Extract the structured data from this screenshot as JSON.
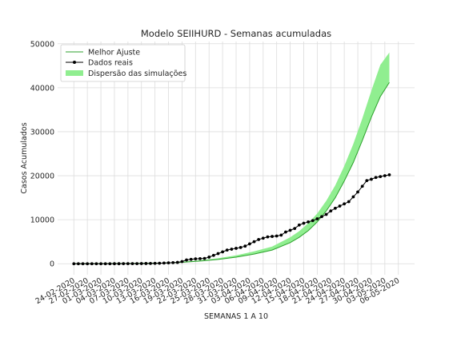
{
  "chart_data": {
    "type": "line",
    "title": "Modelo SEIIHURD - Semanas acumuladas",
    "xlabel": "SEMANAS 1 A 10",
    "ylabel": "Casos Acumulados",
    "ylim": [
      -2500,
      50500
    ],
    "yticks": [
      0,
      10000,
      20000,
      30000,
      40000,
      50000
    ],
    "grid": true,
    "legend_position": "top-left",
    "x_tick_labels": [
      "24-02-2020",
      "27-02-2020",
      "01-03-2020",
      "04-03-2020",
      "07-03-2020",
      "10-03-2020",
      "13-03-2020",
      "16-03-2020",
      "19-03-2020",
      "22-03-2020",
      "25-03-2020",
      "28-03-2020",
      "31-03-2020",
      "03-04-2020",
      "06-04-2020",
      "09-04-2020",
      "12-04-2020",
      "15-04-2020",
      "18-04-2020",
      "21-04-2020",
      "24-04-2020",
      "27-04-2020",
      "30-04-2020",
      "03-05-2020",
      "06-05-2020"
    ],
    "x_day_range": [
      0,
      72
    ],
    "series": [
      {
        "name": "Melhor Ajuste",
        "kind": "line",
        "color": "#2ca02c",
        "x": [
          0,
          4,
          8,
          12,
          16,
          20,
          24,
          28,
          32,
          36,
          40,
          44,
          48,
          50,
          52,
          54,
          56,
          58,
          60,
          62,
          64,
          66,
          68,
          70
        ],
        "y": [
          0,
          10,
          30,
          60,
          100,
          160,
          320,
          600,
          980,
          1500,
          2200,
          3100,
          4800,
          6000,
          7500,
          9500,
          12000,
          15000,
          18800,
          23000,
          28000,
          33300,
          38000,
          41200
        ]
      },
      {
        "name": "Dados reais",
        "kind": "line-marker",
        "color": "#000000",
        "x": [
          0,
          1,
          2,
          3,
          4,
          5,
          6,
          7,
          8,
          9,
          10,
          11,
          12,
          13,
          14,
          15,
          16,
          17,
          18,
          19,
          20,
          21,
          22,
          23,
          24,
          25,
          26,
          27,
          28,
          29,
          30,
          31,
          32,
          33,
          34,
          35,
          36,
          37,
          38,
          39,
          40,
          41,
          42,
          43,
          44,
          45,
          46,
          47,
          48,
          49,
          50,
          51,
          52,
          53,
          54,
          55,
          56,
          57,
          58,
          59,
          60,
          61,
          62,
          63,
          64,
          65,
          66,
          67,
          68,
          69,
          70
        ],
        "y": [
          1,
          1,
          1,
          1,
          2,
          2,
          2,
          2,
          2,
          3,
          6,
          10,
          13,
          16,
          19,
          30,
          50,
          70,
          90,
          110,
          150,
          200,
          250,
          300,
          500,
          850,
          1000,
          1100,
          1150,
          1200,
          1500,
          1900,
          2300,
          2700,
          3100,
          3300,
          3500,
          3700,
          4000,
          4500,
          5000,
          5500,
          5800,
          6100,
          6200,
          6300,
          6500,
          7200,
          7600,
          8000,
          8800,
          9200,
          9500,
          9800,
          10200,
          10700,
          11200,
          12000,
          12600,
          13100,
          13600,
          14100,
          15200,
          16300,
          17600,
          18900,
          19200,
          19600,
          19800,
          20000,
          20200
        ]
      },
      {
        "name": "Dispersão das simulações",
        "kind": "band",
        "color": "#90ee90",
        "x": [
          24,
          28,
          32,
          36,
          40,
          44,
          48,
          50,
          52,
          54,
          56,
          58,
          60,
          62,
          64,
          66,
          68,
          70
        ],
        "y_low": [
          320,
          600,
          980,
          1500,
          2200,
          3100,
          4800,
          6000,
          7500,
          9500,
          12000,
          15000,
          18800,
          23000,
          28000,
          33300,
          38000,
          41200
        ],
        "y_high": [
          420,
          780,
          1250,
          1900,
          2800,
          3900,
          6000,
          7400,
          9200,
          11400,
          14300,
          17800,
          22200,
          27200,
          33000,
          39300,
          45200,
          48000
        ]
      }
    ]
  }
}
